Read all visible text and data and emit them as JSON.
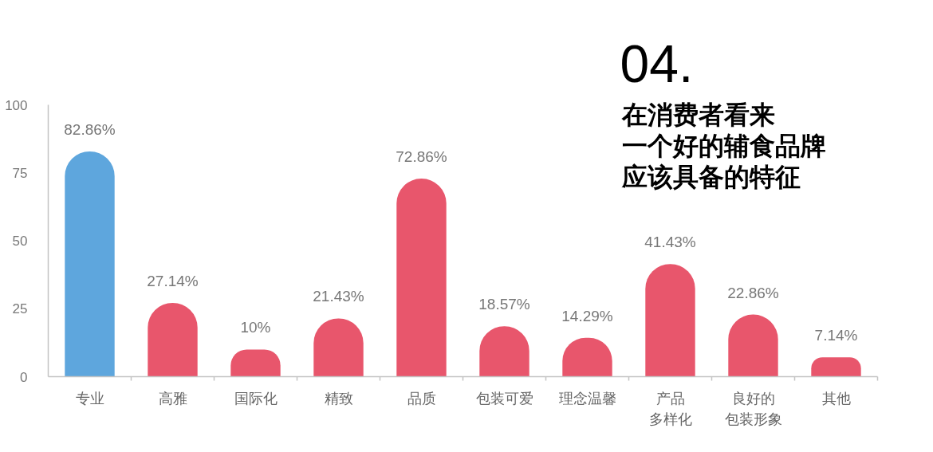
{
  "chart_data": {
    "type": "bar",
    "title": "04.",
    "subtitle": "在消费者看来一个好的辅食品牌应该具备的特征",
    "categories": [
      "专业",
      "高雅",
      "国际化",
      "精致",
      "品质",
      "包装可爱",
      "理念温馨",
      "产品多样化",
      "良好的包装形象",
      "其他"
    ],
    "values": [
      82.86,
      27.14,
      10,
      21.43,
      72.86,
      18.57,
      14.29,
      41.43,
      22.86,
      7.14
    ],
    "colors": [
      "#5ea6dd",
      "#e8566c",
      "#e8566c",
      "#e8566c",
      "#e8566c",
      "#e8566c",
      "#e8566c",
      "#e8566c",
      "#e8566c",
      "#e8566c"
    ],
    "value_labels": [
      "82.86%",
      "27.14%",
      "10%",
      "21.43%",
      "72.86%",
      "18.57%",
      "14.29%",
      "41.43%",
      "22.86%",
      "7.14%"
    ],
    "ylim": [
      0,
      100
    ],
    "yticks": [
      0,
      25,
      50,
      75,
      100
    ],
    "grid": false
  }
}
